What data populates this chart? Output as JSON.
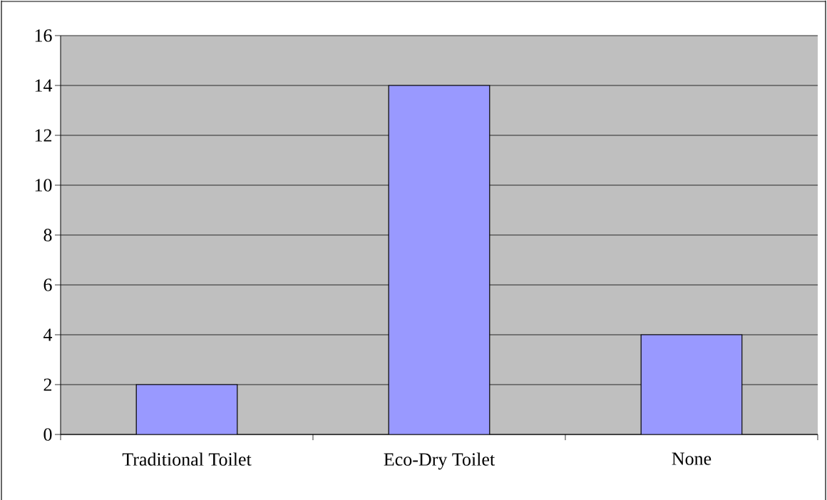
{
  "chart_data": {
    "type": "bar",
    "categories": [
      "Traditional Toilet",
      "Eco-Dry Toilet",
      "None"
    ],
    "values": [
      2,
      14,
      4
    ],
    "color": "#9999ff",
    "ylim": [
      0,
      16
    ],
    "yticks": [
      0,
      2,
      4,
      6,
      8,
      10,
      12,
      14,
      16
    ],
    "grid": "y"
  }
}
